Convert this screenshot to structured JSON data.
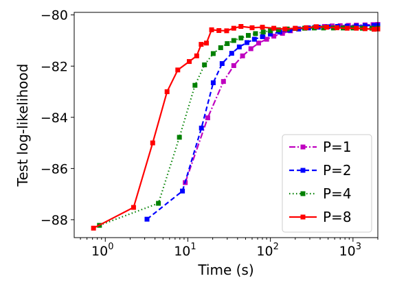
{
  "chart_data": {
    "type": "line",
    "xlabel": "Time (s)",
    "ylabel": "Test log-likelihood",
    "xscale": "log",
    "xlim": [
      0.42,
      2000
    ],
    "ylim": [
      -88.7,
      -79.9
    ],
    "xticks": [
      {
        "value": 1,
        "base": "10",
        "exp": "0"
      },
      {
        "value": 10,
        "base": "10",
        "exp": "1"
      },
      {
        "value": 100,
        "base": "10",
        "exp": "2"
      },
      {
        "value": 1000,
        "base": "10",
        "exp": "3"
      }
    ],
    "yticks": [
      {
        "value": -88,
        "label": "−88"
      },
      {
        "value": -86,
        "label": "−86"
      },
      {
        "value": -84,
        "label": "−84"
      },
      {
        "value": -82,
        "label": "−82"
      },
      {
        "value": -80,
        "label": "−80"
      }
    ],
    "grid": false,
    "legend_position": "bottom-right",
    "series": [
      {
        "name": "P=1",
        "color": "#bf00bf",
        "dash": "dashdot",
        "points": [
          [
            9.3,
            -86.55
          ],
          [
            17.4,
            -84.02
          ],
          [
            27,
            -82.6
          ],
          [
            36,
            -81.98
          ],
          [
            46,
            -81.6
          ],
          [
            58,
            -81.32
          ],
          [
            72,
            -81.1
          ],
          [
            90,
            -80.95
          ],
          [
            110,
            -80.83
          ],
          [
            140,
            -80.72
          ],
          [
            175,
            -80.62
          ],
          [
            220,
            -80.55
          ],
          [
            280,
            -80.5
          ],
          [
            350,
            -80.47
          ],
          [
            450,
            -80.45
          ],
          [
            560,
            -80.43
          ],
          [
            700,
            -80.42
          ],
          [
            880,
            -80.41
          ],
          [
            1100,
            -80.4
          ],
          [
            1400,
            -80.39
          ],
          [
            1750,
            -80.38
          ],
          [
            2000,
            -80.37
          ]
        ]
      },
      {
        "name": "P=2",
        "color": "#0000ff",
        "dash": "dashed",
        "points": [
          [
            3.2,
            -87.98
          ],
          [
            8.6,
            -86.88
          ],
          [
            14.6,
            -84.42
          ],
          [
            20.3,
            -82.65
          ],
          [
            26,
            -81.9
          ],
          [
            34,
            -81.5
          ],
          [
            42,
            -81.25
          ],
          [
            52,
            -81.08
          ],
          [
            64,
            -80.95
          ],
          [
            80,
            -80.85
          ],
          [
            100,
            -80.75
          ],
          [
            130,
            -80.67
          ],
          [
            170,
            -80.6
          ],
          [
            220,
            -80.55
          ],
          [
            290,
            -80.51
          ],
          [
            380,
            -80.48
          ],
          [
            500,
            -80.46
          ],
          [
            650,
            -80.45
          ],
          [
            850,
            -80.44
          ],
          [
            1100,
            -80.43
          ],
          [
            1400,
            -80.42
          ],
          [
            1800,
            -80.41
          ],
          [
            2000,
            -80.41
          ]
        ]
      },
      {
        "name": "P=4",
        "color": "#008000",
        "dash": "dotted",
        "points": [
          [
            0.85,
            -88.22
          ],
          [
            4.4,
            -87.36
          ],
          [
            7.9,
            -84.78
          ],
          [
            12.2,
            -82.75
          ],
          [
            15.9,
            -81.95
          ],
          [
            20.3,
            -81.51
          ],
          [
            25,
            -81.28
          ],
          [
            30,
            -81.12
          ],
          [
            36,
            -81.0
          ],
          [
            44,
            -80.9
          ],
          [
            54,
            -80.8
          ],
          [
            66,
            -80.73
          ],
          [
            82,
            -80.67
          ],
          [
            100,
            -80.62
          ],
          [
            125,
            -80.58
          ],
          [
            160,
            -80.55
          ],
          [
            200,
            -80.53
          ],
          [
            260,
            -80.52
          ],
          [
            340,
            -80.51
          ],
          [
            440,
            -80.51
          ],
          [
            580,
            -80.51
          ],
          [
            760,
            -80.51
          ],
          [
            1000,
            -80.51
          ],
          [
            1300,
            -80.52
          ],
          [
            1700,
            -80.52
          ],
          [
            2000,
            -80.52
          ]
        ]
      },
      {
        "name": "P=8",
        "color": "#ff0000",
        "dash": "solid",
        "points": [
          [
            0.72,
            -88.33
          ],
          [
            2.2,
            -87.52
          ],
          [
            3.75,
            -85.0
          ],
          [
            5.6,
            -83.0
          ],
          [
            7.55,
            -82.15
          ],
          [
            10.4,
            -81.82
          ],
          [
            12.8,
            -81.6
          ],
          [
            14.5,
            -81.15
          ],
          [
            16.8,
            -81.1
          ],
          [
            19.4,
            -80.58
          ],
          [
            23.8,
            -80.61
          ],
          [
            29.5,
            -80.62
          ],
          [
            36,
            -80.52
          ],
          [
            44,
            -80.45
          ],
          [
            60,
            -80.5
          ],
          [
            80,
            -80.48
          ],
          [
            110,
            -80.52
          ],
          [
            150,
            -80.55
          ],
          [
            200,
            -80.52
          ],
          [
            270,
            -80.5
          ],
          [
            360,
            -80.46
          ],
          [
            480,
            -80.48
          ],
          [
            640,
            -80.5
          ],
          [
            850,
            -80.52
          ],
          [
            1100,
            -80.52
          ],
          [
            1400,
            -80.54
          ],
          [
            1800,
            -80.56
          ],
          [
            2000,
            -80.55
          ]
        ]
      }
    ]
  }
}
